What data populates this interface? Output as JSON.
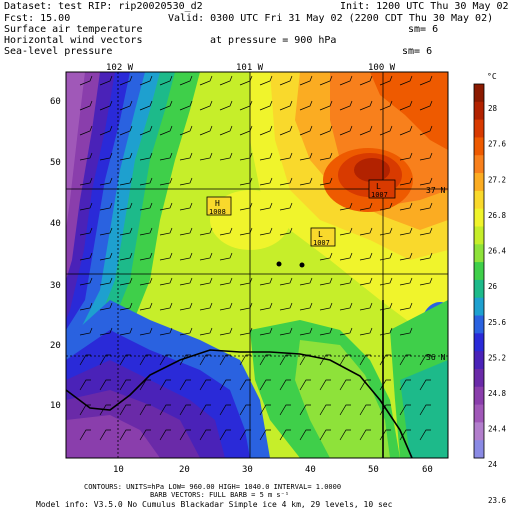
{
  "header": {
    "dataset": "Dataset: test  RIP: rip20020530_d2",
    "init": "Init: 1200 UTC Thu 30 May 02",
    "fcst": "Fcst:    15.00",
    "valid": "Valid: 0300 UTC Fri 31 May 02 (2200 CDT Thu 30 May 02)",
    "field1": "Surface air temperature",
    "field1_sm": "sm= 6",
    "field2": "Horizontal wind vectors",
    "pressure": "at pressure =  900 hPa",
    "field3": "Sea-level pressure",
    "field3_sm": "sm= 6"
  },
  "map": {
    "top_lon_labels": [
      "102 W",
      "101 W",
      "100 W"
    ],
    "right_lat_labels": [
      "37 N",
      "36 N"
    ],
    "x_ticks": [
      "10",
      "20",
      "30",
      "40",
      "50",
      "60"
    ],
    "y_ticks": [
      "10",
      "20",
      "30",
      "40",
      "50",
      "60"
    ],
    "pressure_centers": [
      {
        "type": "H",
        "value": "1008"
      },
      {
        "type": "L",
        "value": "1007"
      },
      {
        "type": "L",
        "value": "1007"
      }
    ]
  },
  "colorbar": {
    "unit": "°C",
    "labels": [
      "28",
      "27.6",
      "27.2",
      "26.8",
      "26.4",
      "26",
      "25.6",
      "25.2",
      "24.8",
      "24.4",
      "24",
      "23.6"
    ],
    "colors": [
      "#8b1a00",
      "#b22200",
      "#d83a00",
      "#ee5a00",
      "#f8801c",
      "#fbac22",
      "#f9d92c",
      "#f0f42c",
      "#c6ee2a",
      "#8ee23a",
      "#3fcf4a",
      "#1dba8a",
      "#1ea0cf",
      "#2a62e0",
      "#2a2ad8",
      "#4a22b8",
      "#6a2aa8",
      "#8a3eac",
      "#a058b8",
      "#b27ecc",
      "#8a8ae4"
    ]
  },
  "footer": {
    "line1": "CONTOURS: UNITS=hPa  LOW=  960.00     HIGH= 1040.0    INTERVAL=   1.0000",
    "line2": "BARB VECTORS: FULL BARB = 5 m s⁻¹",
    "line3": "Model info: V3.5.0 No Cumulus Blackadar  Simple ice    4 km,  29 levels,   10 sec"
  }
}
